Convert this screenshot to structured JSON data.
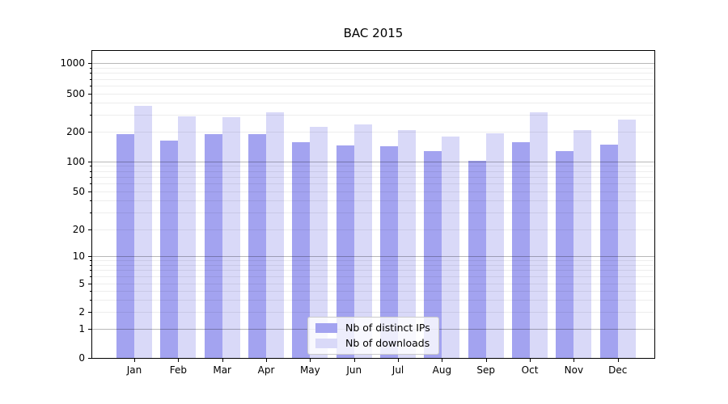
{
  "title": "BAC 2015",
  "chart_data": {
    "type": "bar",
    "title": "BAC 2015",
    "categories": [
      "Jan",
      "Feb",
      "Mar",
      "Apr",
      "May",
      "Jun",
      "Jul",
      "Aug",
      "Sep",
      "Oct",
      "Nov",
      "Dec"
    ],
    "category_year": "2015",
    "series": [
      {
        "name": "Nb of distinct IPs",
        "color": "#a3a3f0",
        "values": [
          190,
          162,
          190,
          190,
          157,
          147,
          144,
          127,
          101,
          158,
          128,
          149
        ]
      },
      {
        "name": "Nb of downloads",
        "color": "#d9d9f8",
        "values": [
          370,
          290,
          285,
          320,
          225,
          240,
          208,
          180,
          192,
          318,
          210,
          268
        ]
      }
    ],
    "xlabel": "",
    "ylabel": "",
    "yscale": "symlog",
    "y_tick_labels": [
      0,
      1,
      2,
      5,
      10,
      20,
      50,
      100,
      200,
      500,
      1000
    ],
    "ylim": [
      0,
      1300
    ],
    "grid": "on",
    "legend_position": "lower center",
    "colors": {
      "axis_text": "#000000",
      "major_grid": "#b8b8b8",
      "minor_grid": "#ececec",
      "spine": "#000000",
      "background": "#ffffff"
    }
  }
}
